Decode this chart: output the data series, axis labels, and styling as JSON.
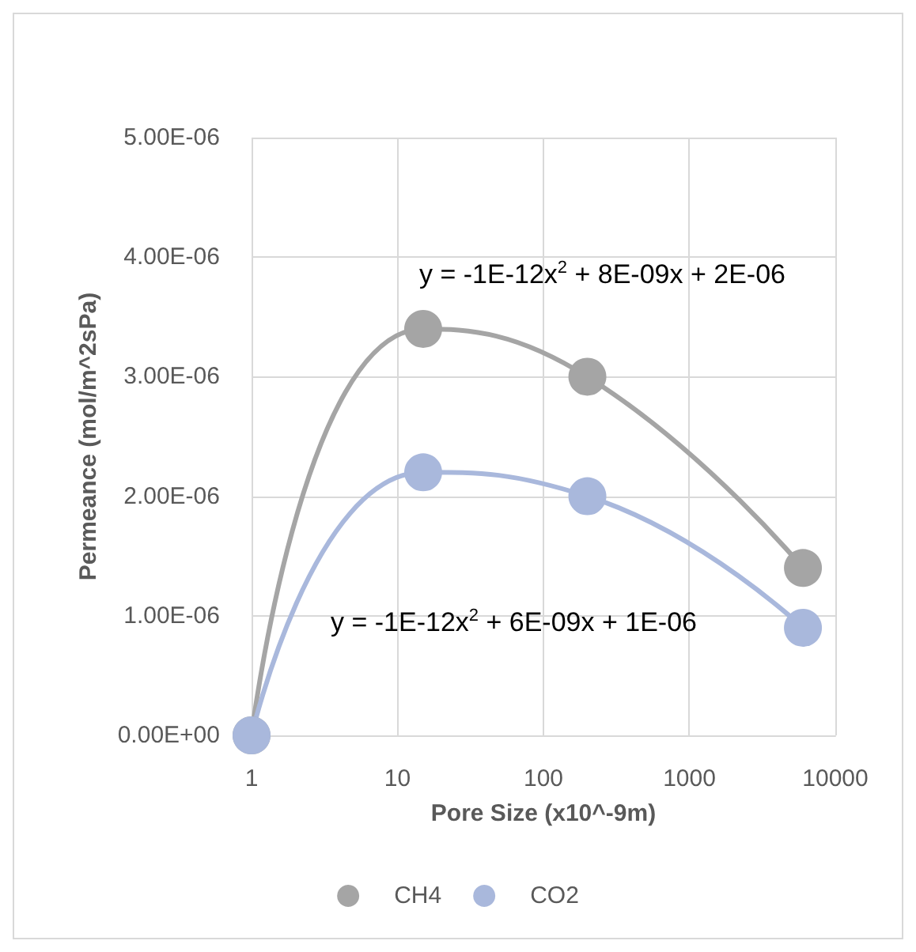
{
  "chart_data": {
    "type": "line",
    "xlabel": "Pore Size (x10^-9m)",
    "ylabel": "Permeance (mol/m^2sPa)",
    "x": [
      1,
      15,
      200,
      6000
    ],
    "series": [
      {
        "name": "CH4",
        "color": "#a5a5a5",
        "values": [
          0,
          3.4e-06,
          3e-06,
          1.4e-06
        ]
      },
      {
        "name": "CO2",
        "color": "#a9b8dc",
        "values": [
          0,
          2.2e-06,
          2e-06,
          9e-07
        ]
      }
    ],
    "log": "x",
    "xlim": [
      1,
      10000
    ],
    "xticks": [
      1,
      10,
      100,
      1000,
      10000
    ],
    "ylim": [
      0,
      5e-06
    ],
    "yticks": [
      {
        "value": 0,
        "label": "0.00E+00"
      },
      {
        "value": 1e-06,
        "label": "1.00E-06"
      },
      {
        "value": 2e-06,
        "label": "2.00E-06"
      },
      {
        "value": 3e-06,
        "label": "3.00E-06"
      },
      {
        "value": 4e-06,
        "label": "4.00E-06"
      },
      {
        "value": 5e-06,
        "label": "5.00E-06"
      }
    ],
    "annotations": [
      "y = -1E-12x$^{2}$ + 8E-09x + 2E-06",
      "y = -1E-12x$^{2}$ + 6E-09x + 1E-06"
    ],
    "grid": true,
    "legend": "bottom",
    "marker": "circle",
    "line_style": "solid"
  }
}
